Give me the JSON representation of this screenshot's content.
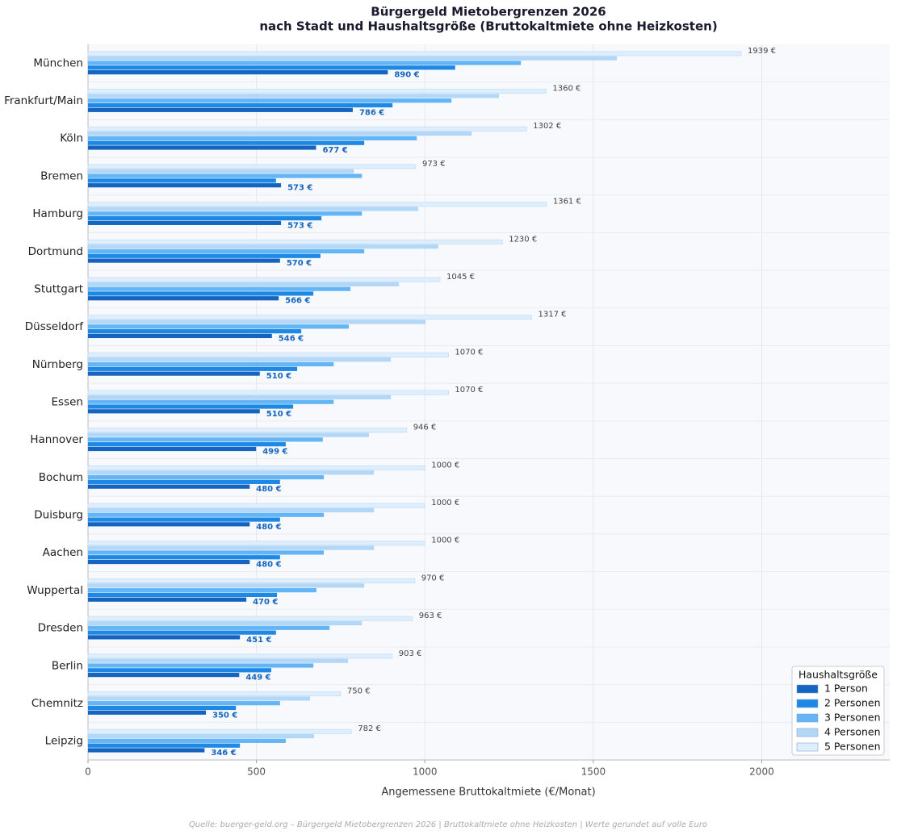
{
  "chart_data": {
    "type": "barh",
    "title": "Bürgergeld Mietobergrenzen 2026",
    "subtitle": "nach Stadt und Haushaltsgröße (Bruttokaltmiete ohne Heizkosten)",
    "xlabel": "Angemessene Bruttokaltmiete (€/Monat)",
    "source": "Quelle: buerger-geld.org – Bürgergeld Mietobergrenzen 2026  |  Bruttokaltmiete ohne Heizkosten  |  Werte gerundet auf volle Euro",
    "legend_title": "Haushaltsgröße",
    "legend": "lower right",
    "grid": true,
    "xlim": [
      0,
      2380
    ],
    "xticks": [
      0,
      500,
      1000,
      1500,
      2000
    ],
    "categories": [
      "München",
      "Frankfurt/Main",
      "Köln",
      "Bremen",
      "Hamburg",
      "Dortmund",
      "Stuttgart",
      "Düsseldorf",
      "Nürnberg",
      "Essen",
      "Hannover",
      "Bochum",
      "Duisburg",
      "Aachen",
      "Wuppertal",
      "Dresden",
      "Berlin",
      "Chemnitz",
      "Leipzig"
    ],
    "series": [
      {
        "name": "1 Person",
        "color": "#1565c0",
        "values": [
          890,
          786,
          677,
          573,
          573,
          570,
          566,
          546,
          510,
          510,
          499,
          480,
          480,
          480,
          470,
          451,
          449,
          350,
          346
        ],
        "value_labels": [
          "890 €",
          "786 €",
          "677 €",
          "573 €",
          "573 €",
          "570 €",
          "566 €",
          "546 €",
          "510 €",
          "510 €",
          "499 €",
          "480 €",
          "480 €",
          "480 €",
          "470 €",
          "451 €",
          "449 €",
          "350 €",
          "346 €"
        ]
      },
      {
        "name": "2 Personen",
        "color": "#1e88e5",
        "values": [
          1090,
          904,
          820,
          558,
          693,
          690,
          669,
          633,
          621,
          609,
          587,
          570,
          570,
          570,
          561,
          558,
          544,
          439,
          451
        ]
      },
      {
        "name": "3 Personen",
        "color": "#64b5f6",
        "values": [
          1285,
          1079,
          976,
          813,
          813,
          820,
          779,
          774,
          729,
          729,
          697,
          700,
          700,
          700,
          678,
          717,
          669,
          570,
          587
        ]
      },
      {
        "name": "4 Personen",
        "color": "#b3d7f7",
        "values": [
          1570,
          1220,
          1139,
          789,
          980,
          1040,
          923,
          1002,
          899,
          899,
          834,
          849,
          849,
          849,
          820,
          813,
          772,
          659,
          671
        ]
      },
      {
        "name": "5 Personen",
        "color": "#deeefc",
        "values": [
          1939,
          1360,
          1302,
          973,
          1361,
          1230,
          1045,
          1317,
          1070,
          1070,
          946,
          1000,
          1000,
          1000,
          970,
          963,
          903,
          750,
          782
        ],
        "value_labels": [
          "1939 €",
          "1360 €",
          "1302 €",
          "973 €",
          "1361 €",
          "1230 €",
          "1045 €",
          "1317 €",
          "1070 €",
          "1070 €",
          "946 €",
          "1000 €",
          "1000 €",
          "1000 €",
          "970 €",
          "963 €",
          "903 €",
          "750 €",
          "782 €"
        ]
      }
    ]
  }
}
